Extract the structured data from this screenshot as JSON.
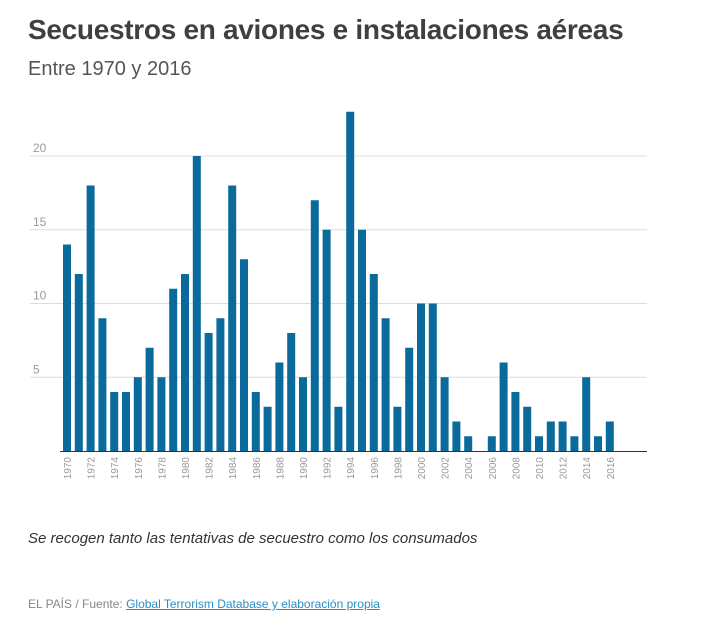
{
  "header": {
    "title": "Secuestros en aviones e instalaciones aéreas",
    "subtitle": "Entre 1970 y 2016"
  },
  "footer": {
    "note": "Se recogen tanto las tentativas de secuestro como los consumados",
    "source_prefix": "EL PAÍS / Fuente: ",
    "source_link": "Global Terrorism Database y elaboración propia"
  },
  "colors": {
    "bar": "#0a6a9c",
    "grid": "#dddddd",
    "axis": "#333333",
    "tick_label": "#999999"
  },
  "chart_data": {
    "type": "bar",
    "title": "",
    "xlabel": "",
    "ylabel": "",
    "categories": [
      "1970",
      "1971",
      "1972",
      "1973",
      "1974",
      "1975",
      "1976",
      "1977",
      "1978",
      "1979",
      "1980",
      "1981",
      "1982",
      "1983",
      "1984",
      "1985",
      "1986",
      "1987",
      "1988",
      "1989",
      "1990",
      "1991",
      "1992",
      "1993",
      "1994",
      "1995",
      "1996",
      "1997",
      "1998",
      "1999",
      "2000",
      "2001",
      "2002",
      "2003",
      "2004",
      "2005",
      "2006",
      "2007",
      "2008",
      "2009",
      "2010",
      "2011",
      "2012",
      "2013",
      "2014",
      "2015",
      "2016"
    ],
    "x_tick_labels": [
      "1970",
      "1972",
      "1974",
      "1976",
      "1978",
      "1980",
      "1982",
      "1984",
      "1986",
      "1988",
      "1990",
      "1992",
      "1994",
      "1996",
      "1998",
      "2000",
      "2002",
      "2004",
      "2006",
      "2008",
      "2010",
      "2012",
      "2014",
      "2016"
    ],
    "values": [
      14,
      12,
      18,
      9,
      4,
      4,
      5,
      7,
      5,
      11,
      12,
      20,
      8,
      9,
      18,
      13,
      4,
      3,
      6,
      8,
      5,
      17,
      15,
      3,
      23,
      15,
      12,
      9,
      3,
      7,
      10,
      10,
      5,
      2,
      1,
      0,
      1,
      6,
      4,
      3,
      1,
      2,
      2,
      1,
      5,
      1,
      2
    ],
    "y_ticks": [
      5,
      10,
      15,
      20
    ],
    "ylim": [
      0,
      23
    ],
    "grid": true,
    "legend": "none"
  }
}
